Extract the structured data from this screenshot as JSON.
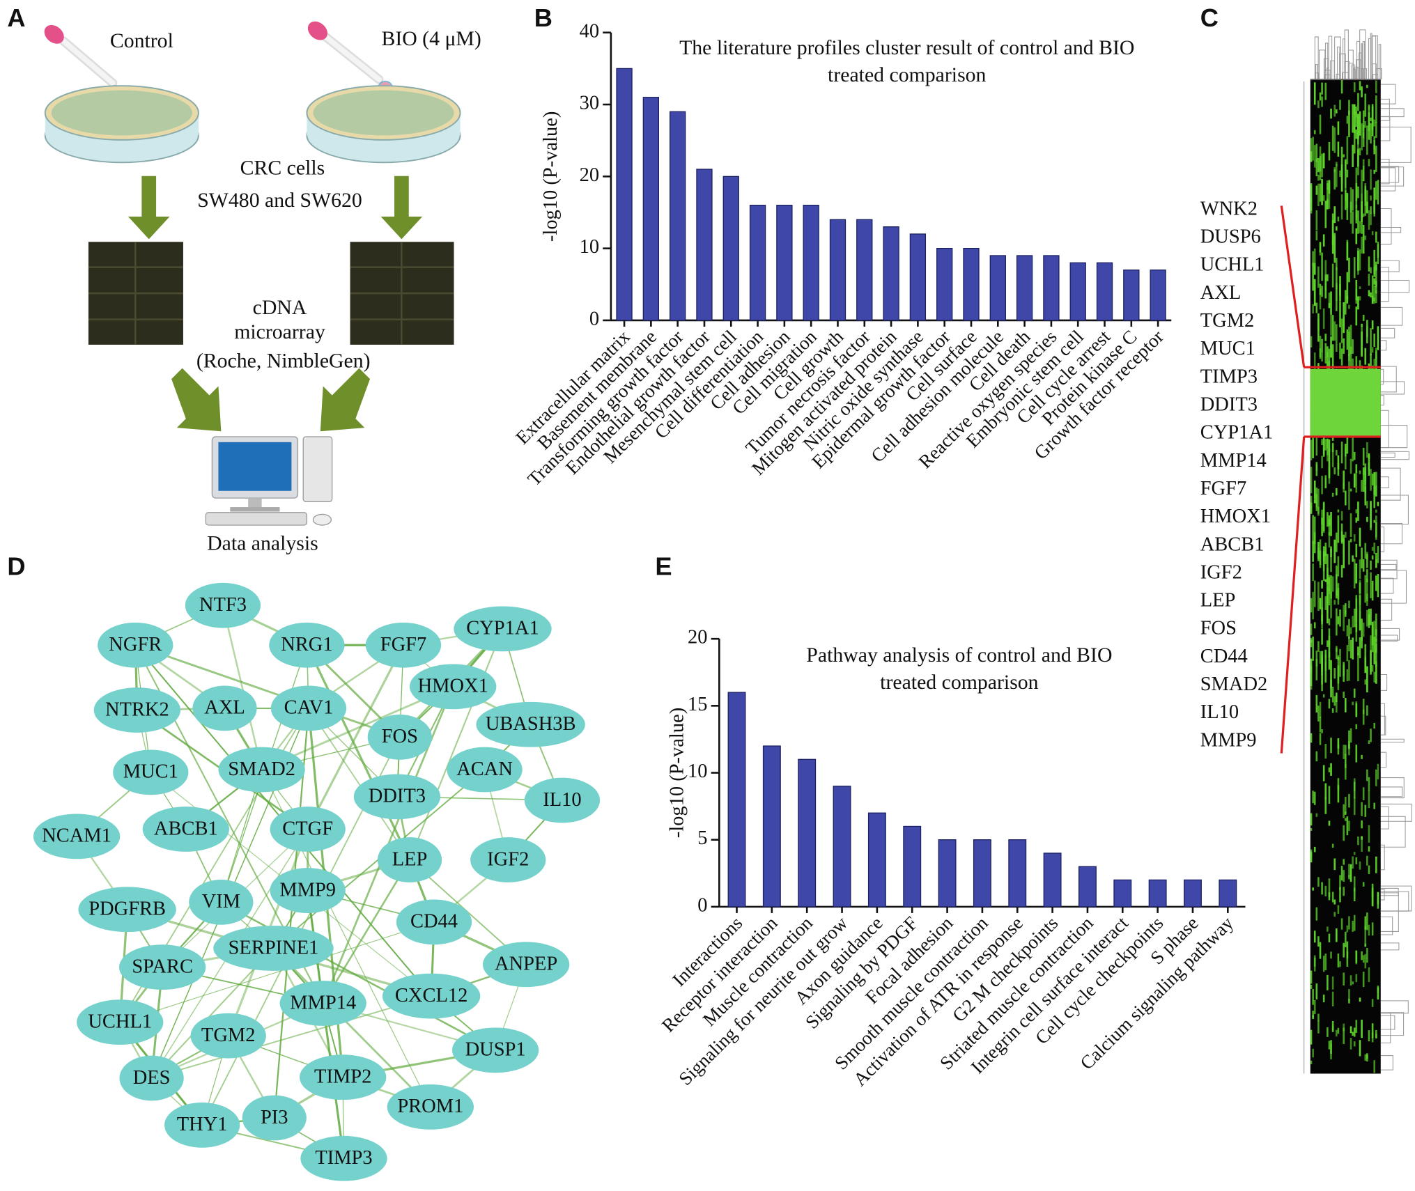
{
  "panel_labels": [
    "A",
    "B",
    "C",
    "D",
    "E"
  ],
  "panel_a": {
    "control": "Control",
    "treatment": "BIO (4 μM)",
    "cells": "CRC cells",
    "cell_lines": "SW480 and SW620",
    "array_1": "cDNA",
    "array_2": "microarray",
    "array_3": "(Roche, NimbleGen)",
    "analysis": "Data analysis"
  },
  "chart_data": [
    {
      "type": "bar",
      "title": [
        "The literature profiles cluster result of control and BIO",
        "treated comparison"
      ],
      "y_label": "-log10 (P-value)",
      "categories": [
        "Extracellular matrix",
        "Basement membrane",
        "Transforming growth factor",
        "Endothelial growth factor",
        "Mesenchymal stem cell",
        "Cell differentiation",
        "Cell adhesion",
        "Cell migration",
        "Cell growth",
        "Tumor necrosis factor",
        "Mitogen activated protein",
        "Nitric oxide synthase",
        "Epidermal growth factor",
        "Cell surface",
        "Cell adhesion molecule",
        "Cell death",
        "Reactive oxygen species",
        "Embryonic stem cell",
        "Cell cycle arrest",
        "Protein kinase C",
        "Growth factor receptor"
      ],
      "values": [
        35,
        31,
        29,
        21,
        20,
        16,
        16,
        16,
        14,
        14,
        13,
        12,
        10,
        10,
        9,
        9,
        9,
        8,
        8,
        7,
        7
      ],
      "color": "#3f48a8",
      "ylim": [
        0,
        40
      ],
      "yticks": [
        0,
        10,
        20,
        30,
        40
      ]
    },
    {
      "type": "bar",
      "title": [
        "Pathway analysis of control and BIO",
        "treated comparison"
      ],
      "y_label": "-log10 (P-value)",
      "categories": [
        "Interactions",
        "Receptor interaction",
        "Muscle contraction",
        "Signaling for neurite out grow",
        "Axon guidance",
        "Signaling by PDGF",
        "Focal adhesion",
        "Smooth muscle contraction",
        "Activation of ATR in response",
        "G2 M checkpoints",
        "Striated muscle contraction",
        "Integrin cell surface interact",
        "Cell cycle checkpoints",
        "S phase",
        "Calcium signaling pathway"
      ],
      "values": [
        16,
        12,
        11,
        9,
        7,
        6,
        5,
        5,
        5,
        4,
        3,
        2,
        2,
        2,
        2
      ],
      "color": "#3f48a8",
      "ylim": [
        0,
        20
      ],
      "yticks": [
        0,
        5,
        10,
        15,
        20
      ]
    }
  ],
  "panel_c": {
    "genes": [
      "WNK2",
      "DUSP6",
      "UCHL1",
      "AXL",
      "TGM2",
      "MUC1",
      "TIMP3",
      "DDIT3",
      "CYP1A1",
      "MMP14",
      "FGF7",
      "HMOX1",
      "ABCB1",
      "IGF2",
      "LEP",
      "FOS",
      "CD44",
      "SMAD2",
      "IL10",
      "MMP9"
    ]
  },
  "network": {
    "nodes": [
      "NTF3",
      "NGFR",
      "NRG1",
      "FGF7",
      "CYP1A1",
      "HMOX1",
      "NTRK2",
      "AXL",
      "CAV1",
      "UBASH3B",
      "FOS",
      "MUC1",
      "SMAD2",
      "ACAN",
      "IL10",
      "DDIT3",
      "NCAM1",
      "ABCB1",
      "CTGF",
      "LEP",
      "IGF2",
      "PDGFRB",
      "VIM",
      "MMP9",
      "CD44",
      "ANPEP",
      "SERPINE1",
      "SPARC",
      "MMP14",
      "CXCL12",
      "UCHL1",
      "TGM2",
      "DUSP1",
      "DES",
      "TIMP2",
      "PROM1",
      "THY1",
      "PI3",
      "TIMP3"
    ]
  }
}
